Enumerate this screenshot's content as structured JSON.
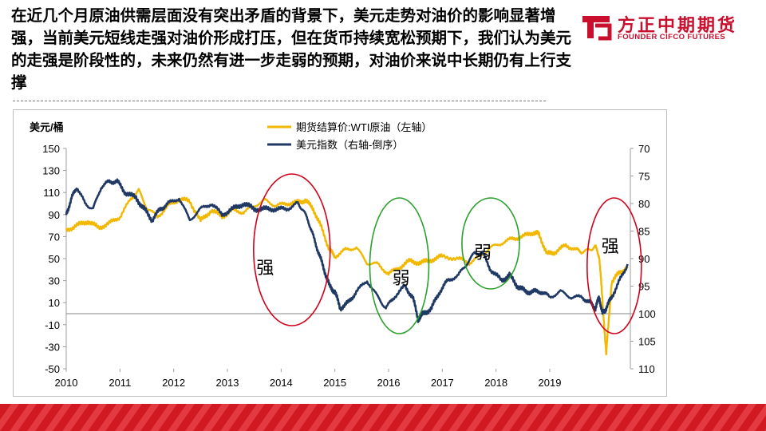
{
  "slide": {
    "headline": "在近几个月原油供需层面没有突出矛盾的背景下，美元走势对油价的影响显著增强，当前美元短线走强对油价形成打压，但在货币持续宽松预期下，我们认为美元的走强是阶段性的，未来仍然有进一步走弱的预期，对油价来说中长期仍有上行支撑"
  },
  "logo": {
    "name": "方正中期期货",
    "subtitle": "FOUNDER CIFCO FUTURES",
    "color": "#c8102e"
  },
  "chart_data": {
    "type": "line",
    "ylabel_left": "美元/桶",
    "left_axis": {
      "ylim": [
        -50,
        150
      ],
      "ticks": [
        150,
        130,
        110,
        90,
        70,
        50,
        30,
        10,
        -10,
        -30,
        -50
      ]
    },
    "right_axis": {
      "ylim": [
        70,
        110
      ],
      "inverted": true,
      "ticks": [
        70,
        75,
        80,
        85,
        90,
        95,
        100,
        105,
        110
      ]
    },
    "x_ticks": [
      "2010",
      "2011",
      "2012",
      "2013",
      "2014",
      "2015",
      "2016",
      "2017",
      "2018",
      "2019"
    ],
    "legend_position": "top",
    "series": [
      {
        "name": "期货结算价:WTI原油（左轴）",
        "axis": "left",
        "color": "#f2b800",
        "x": [
          2010.0,
          2010.2,
          2010.4,
          2010.6,
          2010.8,
          2011.0,
          2011.2,
          2011.35,
          2011.5,
          2011.7,
          2011.9,
          2012.1,
          2012.3,
          2012.5,
          2012.7,
          2012.9,
          2013.1,
          2013.3,
          2013.5,
          2013.7,
          2013.9,
          2014.1,
          2014.3,
          2014.45,
          2014.6,
          2014.75,
          2014.9,
          2015.0,
          2015.2,
          2015.4,
          2015.6,
          2015.8,
          2016.0,
          2016.2,
          2016.4,
          2016.6,
          2016.8,
          2017.0,
          2017.3,
          2017.5,
          2017.7,
          2017.9,
          2018.1,
          2018.3,
          2018.5,
          2018.7,
          2018.8,
          2018.95,
          2019.1,
          2019.3,
          2019.5,
          2019.6,
          2019.75,
          2019.85,
          2019.92,
          2019.97,
          2020.05,
          2020.15,
          2020.3,
          2020.45
        ],
        "values": [
          76,
          80,
          84,
          78,
          82,
          88,
          104,
          112,
          96,
          88,
          98,
          104,
          102,
          84,
          94,
          88,
          94,
          92,
          98,
          103,
          98,
          100,
          101,
          103,
          95,
          78,
          58,
          52,
          58,
          60,
          46,
          45,
          36,
          42,
          48,
          46,
          49,
          52,
          50,
          46,
          52,
          60,
          64,
          68,
          70,
          74,
          72,
          54,
          56,
          62,
          58,
          56,
          58,
          61,
          52,
          20,
          -37,
          28,
          38,
          41
        ]
      },
      {
        "name": "美元指数（右轴-倒序）",
        "axis": "right",
        "color": "#1f3864",
        "x": [
          2010.0,
          2010.1,
          2010.2,
          2010.35,
          2010.5,
          2010.65,
          2010.8,
          2010.95,
          2011.1,
          2011.3,
          2011.45,
          2011.6,
          2011.75,
          2011.9,
          2012.1,
          2012.3,
          2012.5,
          2012.7,
          2012.9,
          2013.1,
          2013.3,
          2013.5,
          2013.7,
          2013.9,
          2014.1,
          2014.3,
          2014.4,
          2014.5,
          2014.6,
          2014.7,
          2014.8,
          2014.9,
          2015.0,
          2015.1,
          2015.25,
          2015.4,
          2015.6,
          2015.8,
          2015.95,
          2016.1,
          2016.3,
          2016.45,
          2016.55,
          2016.65,
          2016.8,
          2016.95,
          2017.1,
          2017.3,
          2017.45,
          2017.6,
          2017.75,
          2017.9,
          2018.1,
          2018.25,
          2018.4,
          2018.55,
          2018.7,
          2018.85,
          2019.0,
          2019.2,
          2019.4,
          2019.6,
          2019.75,
          2019.85,
          2019.92,
          2019.98,
          2020.05,
          2020.15,
          2020.3,
          2020.45
        ],
        "values": [
          82,
          79,
          77,
          80,
          81,
          77,
          76,
          76,
          78,
          79,
          81,
          83,
          81,
          80,
          79,
          83,
          81,
          80,
          82,
          81,
          80,
          81,
          81,
          81,
          81,
          80,
          81,
          83,
          86,
          89,
          92,
          95,
          96,
          99,
          98,
          96,
          94,
          97,
          99,
          97,
          95,
          97,
          101,
          100,
          99,
          96,
          94,
          93,
          91,
          89,
          89,
          92,
          94,
          93,
          95,
          96,
          96,
          96,
          97,
          96,
          97,
          97,
          98,
          99,
          97,
          100,
          99,
          97,
          94,
          91
        ]
      }
    ],
    "annotations": [
      {
        "label": "强",
        "color": "#d0021b"
      },
      {
        "label": "弱",
        "color": "#2ca02c"
      },
      {
        "label": "弱",
        "color": "#2ca02c"
      },
      {
        "label": "强",
        "color": "#d0021b"
      }
    ]
  }
}
